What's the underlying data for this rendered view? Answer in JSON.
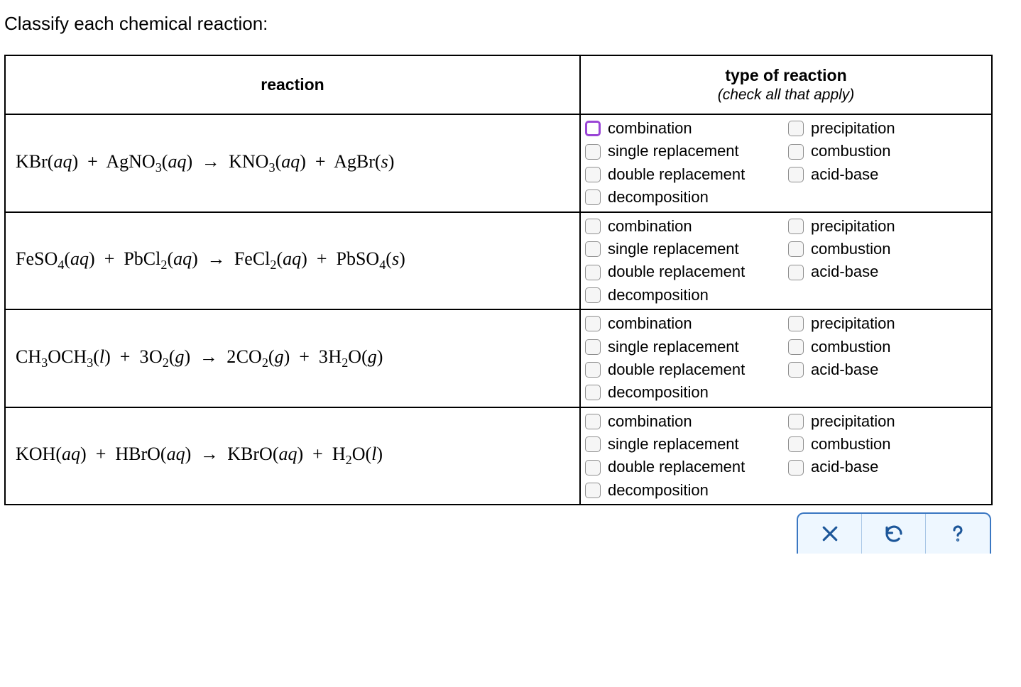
{
  "prompt": "Classify each chemical reaction:",
  "columns": {
    "reaction": "reaction",
    "type_title": "type of reaction",
    "type_sub": "(check all that apply)"
  },
  "option_labels": {
    "combination": "combination",
    "precipitation": "precipitation",
    "single_replacement": "single replacement",
    "combustion": "combustion",
    "double_replacement": "double replacement",
    "acid_base": "acid-base",
    "decomposition": "decomposition"
  },
  "reactions": [
    {
      "id": "r1",
      "reactants": [
        {
          "formula": "KBr",
          "state": "aq",
          "coeff": ""
        },
        {
          "formula": "AgNO_3",
          "state": "aq",
          "coeff": ""
        }
      ],
      "products": [
        {
          "formula": "KNO_3",
          "state": "aq",
          "coeff": ""
        },
        {
          "formula": "AgBr",
          "state": "s",
          "coeff": ""
        }
      ],
      "highlighted_checkbox": "combination"
    },
    {
      "id": "r2",
      "reactants": [
        {
          "formula": "FeSO_4",
          "state": "aq",
          "coeff": ""
        },
        {
          "formula": "PbCl_2",
          "state": "aq",
          "coeff": ""
        }
      ],
      "products": [
        {
          "formula": "FeCl_2",
          "state": "aq",
          "coeff": ""
        },
        {
          "formula": "PbSO_4",
          "state": "s",
          "coeff": ""
        }
      ],
      "highlighted_checkbox": null
    },
    {
      "id": "r3",
      "reactants": [
        {
          "formula": "CH_3OCH_3",
          "state": "l",
          "coeff": ""
        },
        {
          "formula": "O_2",
          "state": "g",
          "coeff": "3"
        }
      ],
      "products": [
        {
          "formula": "CO_2",
          "state": "g",
          "coeff": "2"
        },
        {
          "formula": "H_2O",
          "state": "g",
          "coeff": "3"
        }
      ],
      "highlighted_checkbox": null
    },
    {
      "id": "r4",
      "reactants": [
        {
          "formula": "KOH",
          "state": "aq",
          "coeff": ""
        },
        {
          "formula": "HBrO",
          "state": "aq",
          "coeff": ""
        }
      ],
      "products": [
        {
          "formula": "KBrO",
          "state": "aq",
          "coeff": ""
        },
        {
          "formula": "H_2O",
          "state": "l",
          "coeff": ""
        }
      ],
      "highlighted_checkbox": null
    }
  ],
  "option_order_col1": [
    "combination",
    "single_replacement",
    "double_replacement",
    "decomposition"
  ],
  "option_order_col2": [
    "precipitation",
    "combustion",
    "acid_base"
  ],
  "buttons": {
    "close": "close-icon",
    "reset": "reset-icon",
    "help": "help-icon"
  },
  "colors": {
    "border": "#000000",
    "checkbox_border": "#8f8f8f",
    "checkbox_bg": "#f6f6f6",
    "highlight_border": "#9a45d6",
    "button_panel_border": "#3a77c2",
    "button_panel_bg": "#eef7ff",
    "button_fg": "#1c5699",
    "button_divider": "#a9c7e6"
  }
}
